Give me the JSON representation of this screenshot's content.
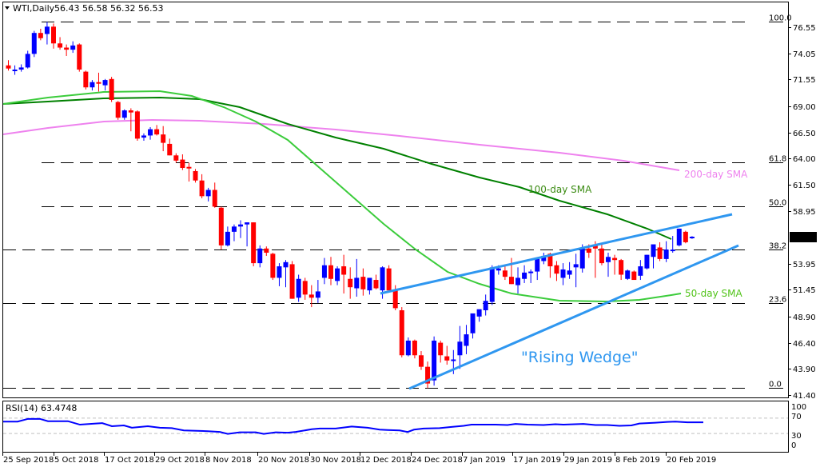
{
  "header": {
    "symbol": "WTI,Daily",
    "ohlc": "56.43 56.58 56.32 56.53",
    "menu_icon": "triangle-down-icon"
  },
  "colors": {
    "bull": "#0000ff",
    "bear": "#ff0000",
    "sma50": "#3ccc3c",
    "sma100": "#008000",
    "sma200": "#ee82ee",
    "wedge": "#2f97f0",
    "rsi": "#0000ff",
    "grid": "#000000",
    "price_tag_bg": "#000000",
    "price_tag_fg": "#ffffff"
  },
  "price_axis": {
    "labels": [
      "76.55",
      "74.05",
      "71.55",
      "69.00",
      "66.50",
      "64.00",
      "61.50",
      "58.95",
      "56.53",
      "53.95",
      "51.45",
      "48.90",
      "46.40",
      "43.90",
      "41.40"
    ],
    "current_price": "56.53"
  },
  "fib_levels": [
    {
      "label": "100.0",
      "price": 77.05
    },
    {
      "label": "61.8",
      "price": 63.6
    },
    {
      "label": "50.0",
      "price": 59.45
    },
    {
      "label": "38.2",
      "price": 55.3
    },
    {
      "label": "23.6",
      "price": 50.2
    },
    {
      "label": "0.0",
      "price": 42.05
    }
  ],
  "annotations": {
    "sma200": "200-day SMA",
    "sma100": "100-day SMA",
    "sma50": "50-day SMA",
    "pattern": "\"Rising Wedge\""
  },
  "rsi": {
    "title": "RSI(14) 63.4748",
    "levels": [
      "100",
      "70",
      "30",
      "0"
    ]
  },
  "x_axis": {
    "labels": [
      "25 Sep 2018",
      "5 Oct 2018",
      "17 Oct 2018",
      "29 Oct 2018",
      "8 Nov 2018",
      "20 Nov 2018",
      "30 Nov 2018",
      "12 Dec 2018",
      "24 Dec 2018",
      "7 Jan 2019",
      "17 Jan 2019",
      "29 Jan 2019",
      "8 Feb 2019",
      "20 Feb 2019"
    ]
  },
  "chart_data": {
    "type": "candlestick",
    "title": "WTI,Daily",
    "instrument": "WTI",
    "timeframe": "Daily",
    "last_ohlc": {
      "open": 56.43,
      "high": 56.58,
      "low": 56.32,
      "close": 56.53
    },
    "ylim": [
      41.4,
      77.6
    ],
    "y_ticks": [
      76.55,
      74.05,
      71.55,
      69.0,
      66.5,
      64.0,
      61.5,
      58.95,
      53.95,
      51.45,
      48.9,
      46.4,
      43.9,
      41.4
    ],
    "x_tick_labels": [
      "25 Sep 2018",
      "5 Oct 2018",
      "17 Oct 2018",
      "29 Oct 2018",
      "8 Nov 2018",
      "20 Nov 2018",
      "30 Nov 2018",
      "12 Dec 2018",
      "24 Dec 2018",
      "7 Jan 2019",
      "17 Jan 2019",
      "29 Jan 2019",
      "8 Feb 2019",
      "20 Feb 2019"
    ],
    "fibonacci_retracement": {
      "0.0": 42.05,
      "23.6": 50.2,
      "38.2": 55.3,
      "50.0": 59.45,
      "61.8": 63.6,
      "100.0": 77.05
    },
    "candles": [
      [
        72.9,
        73.4,
        72.4,
        72.6
      ],
      [
        72.5,
        72.9,
        72.0,
        72.5
      ],
      [
        72.5,
        73.0,
        72.3,
        72.7
      ],
      [
        72.7,
        74.3,
        72.6,
        74.0
      ],
      [
        74.0,
        76.2,
        73.7,
        76.0
      ],
      [
        76.0,
        76.4,
        75.3,
        75.5
      ],
      [
        75.9,
        77.05,
        74.9,
        76.6
      ],
      [
        76.6,
        76.9,
        74.5,
        75.0
      ],
      [
        75.0,
        75.6,
        74.4,
        74.6
      ],
      [
        74.6,
        74.9,
        73.8,
        74.4
      ],
      [
        74.4,
        75.2,
        74.1,
        74.8
      ],
      [
        74.9,
        75.0,
        72.3,
        72.5
      ],
      [
        72.3,
        72.4,
        70.6,
        70.8
      ],
      [
        70.8,
        71.5,
        70.5,
        71.3
      ],
      [
        71.3,
        72.2,
        70.4,
        71.2
      ],
      [
        71.0,
        71.6,
        70.5,
        71.5
      ],
      [
        71.6,
        71.8,
        69.4,
        69.6
      ],
      [
        69.4,
        69.5,
        67.7,
        67.9
      ],
      [
        67.9,
        68.7,
        67.7,
        68.6
      ],
      [
        68.6,
        68.8,
        66.6,
        68.4
      ],
      [
        68.5,
        68.6,
        65.7,
        65.9
      ],
      [
        66.0,
        66.4,
        65.7,
        66.2
      ],
      [
        66.2,
        67.0,
        65.8,
        66.8
      ],
      [
        66.8,
        67.2,
        66.2,
        66.3
      ],
      [
        66.3,
        67.1,
        64.7,
        65.5
      ],
      [
        65.4,
        65.9,
        64.3,
        64.3
      ],
      [
        64.3,
        64.5,
        63.6,
        63.8
      ],
      [
        63.9,
        64.4,
        62.9,
        63.1
      ],
      [
        63.2,
        63.6,
        61.8,
        63.1
      ],
      [
        62.8,
        63.0,
        61.7,
        61.9
      ],
      [
        61.9,
        62.5,
        60.2,
        60.4
      ],
      [
        60.4,
        61.2,
        59.9,
        61.0
      ],
      [
        61.0,
        61.7,
        59.3,
        59.4
      ],
      [
        59.3,
        59.4,
        55.3,
        55.7
      ],
      [
        55.7,
        57.5,
        55.6,
        57.0
      ],
      [
        57.0,
        57.7,
        56.1,
        57.5
      ],
      [
        57.5,
        58.1,
        56.4,
        57.7
      ],
      [
        57.7,
        57.9,
        55.6,
        57.9
      ],
      [
        57.9,
        57.9,
        53.7,
        54.0
      ],
      [
        54.0,
        55.7,
        53.6,
        55.4
      ],
      [
        55.4,
        55.6,
        54.7,
        55.0
      ],
      [
        54.9,
        55.0,
        52.4,
        52.6
      ],
      [
        52.6,
        54.0,
        51.8,
        53.7
      ],
      [
        53.6,
        54.3,
        51.7,
        54.1
      ],
      [
        53.9,
        54.2,
        50.6,
        50.6
      ],
      [
        50.7,
        52.9,
        50.3,
        52.5
      ],
      [
        52.3,
        52.6,
        50.5,
        51.0
      ],
      [
        51.0,
        51.9,
        49.8,
        50.7
      ],
      [
        50.7,
        52.4,
        50.2,
        51.3
      ],
      [
        52.6,
        54.5,
        52.0,
        53.8
      ],
      [
        53.8,
        54.6,
        51.9,
        52.5
      ],
      [
        52.3,
        53.7,
        51.9,
        53.5
      ],
      [
        53.7,
        54.8,
        51.1,
        52.9
      ],
      [
        52.5,
        53.6,
        50.6,
        51.7
      ],
      [
        51.6,
        54.4,
        50.8,
        52.6
      ],
      [
        52.7,
        53.5,
        50.9,
        51.5
      ],
      [
        51.4,
        52.3,
        51.0,
        52.6
      ],
      [
        52.4,
        52.9,
        51.5,
        51.6
      ],
      [
        51.4,
        53.7,
        50.6,
        53.6
      ],
      [
        53.5,
        53.8,
        51.7,
        51.4
      ],
      [
        51.4,
        51.9,
        49.5,
        49.7
      ],
      [
        49.5,
        49.8,
        45.0,
        45.2
      ],
      [
        45.2,
        46.9,
        45.1,
        46.6
      ],
      [
        46.6,
        46.7,
        44.9,
        45.2
      ],
      [
        45.2,
        45.6,
        43.8,
        44.1
      ],
      [
        44.1,
        44.6,
        42.05,
        42.5
      ],
      [
        42.8,
        47.0,
        42.3,
        46.6
      ],
      [
        46.4,
        46.6,
        44.5,
        45.2
      ],
      [
        45.1,
        46.1,
        44.3,
        44.7
      ],
      [
        44.7,
        45.7,
        43.4,
        44.8
      ],
      [
        45.2,
        48.0,
        43.9,
        46.5
      ],
      [
        46.1,
        48.1,
        45.3,
        47.2
      ],
      [
        47.3,
        49.0,
        46.8,
        49.2
      ],
      [
        48.9,
        49.1,
        48.4,
        49.6
      ],
      [
        49.5,
        51.0,
        49.0,
        50.4
      ],
      [
        50.3,
        53.8,
        50.0,
        53.6
      ],
      [
        53.3,
        53.8,
        52.9,
        53.5
      ],
      [
        53.3,
        53.7,
        52.4,
        52.7
      ],
      [
        52.7,
        54.5,
        52.0,
        52.0
      ],
      [
        51.9,
        53.6,
        51.1,
        52.6
      ],
      [
        52.5,
        53.8,
        52.1,
        53.1
      ],
      [
        53.1,
        53.4,
        52.1,
        53.2
      ],
      [
        53.2,
        54.2,
        52.4,
        54.4
      ],
      [
        54.2,
        55.0,
        53.9,
        54.7
      ],
      [
        54.9,
        55.0,
        52.6,
        53.7
      ],
      [
        53.8,
        54.2,
        52.3,
        53.0
      ],
      [
        52.6,
        54.0,
        51.9,
        53.4
      ],
      [
        52.9,
        54.1,
        52.5,
        53.3
      ],
      [
        53.6,
        54.9,
        51.7,
        53.9
      ],
      [
        53.5,
        55.8,
        53.1,
        55.4
      ],
      [
        55.4,
        55.8,
        54.5,
        55.0
      ],
      [
        55.8,
        56.1,
        52.6,
        55.4
      ],
      [
        55.4,
        55.8,
        53.8,
        54.0
      ],
      [
        54.1,
        55.0,
        52.7,
        54.6
      ],
      [
        54.5,
        54.8,
        52.9,
        54.3
      ],
      [
        54.3,
        54.4,
        52.4,
        52.9
      ],
      [
        52.5,
        53.4,
        52.4,
        53.3
      ],
      [
        53.2,
        53.3,
        52.6,
        52.4
      ],
      [
        52.8,
        54.3,
        52.4,
        53.7
      ],
      [
        53.5,
        54.8,
        53.4,
        54.8
      ],
      [
        54.6,
        55.4,
        53.5,
        55.8
      ],
      [
        55.5,
        56.0,
        54.2,
        54.4
      ],
      [
        54.4,
        56.1,
        54.1,
        55.3
      ],
      [
        55.3,
        56.6,
        55.0,
        55.3
      ],
      [
        55.7,
        57.3,
        55.6,
        57.3
      ],
      [
        57.0,
        57.1,
        55.9,
        56.0
      ],
      [
        56.43,
        56.58,
        56.32,
        56.53
      ]
    ],
    "series": [
      {
        "name": "50-day SMA",
        "color": "#3ccc3c"
      },
      {
        "name": "100-day SMA",
        "color": "#008000"
      },
      {
        "name": "200-day SMA",
        "color": "#ee82ee"
      }
    ],
    "trendlines": [
      {
        "name": "wedge-upper",
        "from": {
          "date": "17 Dec 2018",
          "price": 51.5
        },
        "to": {
          "date": "27 Feb 2019",
          "price": 58.9
        }
      },
      {
        "name": "wedge-lower",
        "from": {
          "date": "24 Dec 2018",
          "price": 42.05
        },
        "to": {
          "date": "27 Feb 2019",
          "price": 55.7
        }
      }
    ],
    "rsi": {
      "period": 14,
      "last": 63.4748,
      "ylim": [
        0,
        100
      ],
      "levels": [
        70,
        30
      ]
    }
  }
}
